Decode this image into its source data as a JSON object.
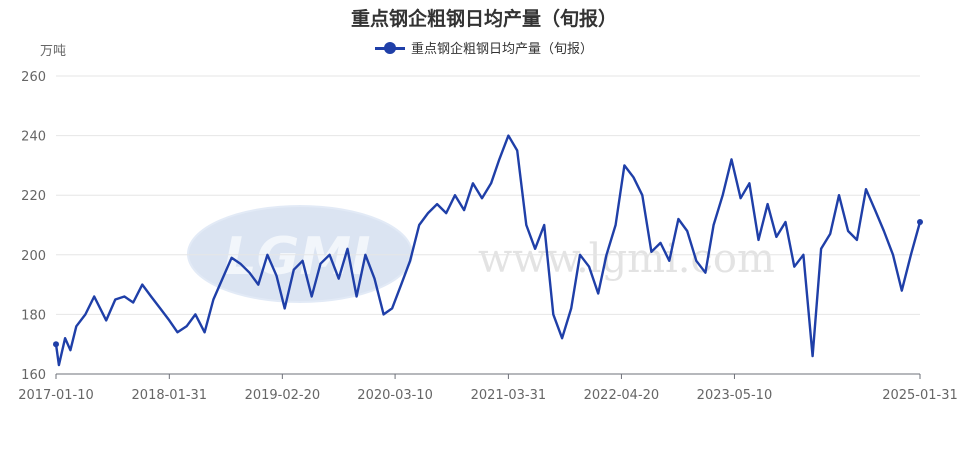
{
  "chart_data": {
    "type": "line",
    "title": "重点钢企粗钢日均产量（旬报）",
    "unit_label": "万吨",
    "ylim": [
      160,
      260
    ],
    "y_ticks": [
      160,
      180,
      200,
      220,
      240,
      260
    ],
    "x_ticks": [
      "2017-01-10",
      "2018-01-31",
      "2019-02-20",
      "2020-03-10",
      "2021-03-31",
      "2022-04-20",
      "2023-05-10",
      "2025-01-31"
    ],
    "x_range": [
      "2017-01-10",
      "2025-01-31"
    ],
    "grid": "horizontal",
    "legend_position": "top-center",
    "watermark": {
      "logo_text": "LGMI",
      "site_text": "www.lgmi.com"
    },
    "colors": {
      "series": "#1f3fa8",
      "grid": "#e6e6e6",
      "axis": "#6e7079"
    },
    "series": [
      {
        "name": "重点钢企粗钢日均产量（旬报）",
        "x": [
          "2017-01-10",
          "2017-01-20",
          "2017-02-10",
          "2017-02-28",
          "2017-03-20",
          "2017-04-20",
          "2017-05-20",
          "2017-06-30",
          "2017-07-31",
          "2017-08-31",
          "2017-09-30",
          "2017-10-31",
          "2017-11-30",
          "2017-12-31",
          "2018-01-31",
          "2018-02-28",
          "2018-03-31",
          "2018-04-30",
          "2018-05-31",
          "2018-06-30",
          "2018-07-31",
          "2018-08-31",
          "2018-09-30",
          "2018-10-31",
          "2018-11-30",
          "2018-12-31",
          "2019-01-31",
          "2019-02-28",
          "2019-03-31",
          "2019-04-30",
          "2019-05-31",
          "2019-06-30",
          "2019-07-31",
          "2019-08-31",
          "2019-09-30",
          "2019-10-31",
          "2019-11-30",
          "2019-12-31",
          "2020-01-31",
          "2020-02-29",
          "2020-03-31",
          "2020-04-30",
          "2020-05-31",
          "2020-06-30",
          "2020-07-31",
          "2020-08-31",
          "2020-09-30",
          "2020-10-31",
          "2020-11-30",
          "2020-12-31",
          "2021-01-31",
          "2021-02-28",
          "2021-03-31",
          "2021-04-30",
          "2021-05-31",
          "2021-06-30",
          "2021-07-31",
          "2021-08-31",
          "2021-09-30",
          "2021-10-31",
          "2021-11-30",
          "2021-12-31",
          "2022-01-31",
          "2022-02-28",
          "2022-03-31",
          "2022-04-30",
          "2022-05-31",
          "2022-06-30",
          "2022-07-31",
          "2022-08-31",
          "2022-09-30",
          "2022-10-31",
          "2022-11-30",
          "2022-12-31",
          "2023-01-31",
          "2023-02-28",
          "2023-03-31",
          "2023-04-30",
          "2023-05-31",
          "2023-06-30",
          "2023-07-31",
          "2023-08-31",
          "2023-09-30",
          "2023-10-31",
          "2023-11-30",
          "2023-12-31",
          "2024-01-31",
          "2024-02-29",
          "2024-03-31",
          "2024-04-30",
          "2024-05-31",
          "2024-06-30",
          "2024-07-31",
          "2024-08-31",
          "2024-09-30",
          "2024-10-31",
          "2024-11-30",
          "2024-12-31",
          "2025-01-31"
        ],
        "values": [
          170,
          163,
          172,
          168,
          176,
          180,
          186,
          178,
          185,
          186,
          184,
          190,
          186,
          182,
          178,
          174,
          176,
          180,
          174,
          185,
          192,
          199,
          197,
          194,
          190,
          200,
          193,
          182,
          195,
          198,
          186,
          197,
          200,
          192,
          202,
          186,
          200,
          192,
          180,
          182,
          190,
          198,
          210,
          214,
          217,
          214,
          220,
          215,
          224,
          219,
          224,
          232,
          240,
          235,
          210,
          202,
          210,
          180,
          172,
          182,
          200,
          196,
          187,
          200,
          210,
          230,
          226,
          220,
          201,
          204,
          198,
          212,
          208,
          198,
          194,
          210,
          220,
          232,
          219,
          224,
          205,
          217,
          206,
          211,
          196,
          200,
          166,
          202,
          207,
          220,
          208,
          205,
          222,
          215,
          208,
          200,
          188,
          200,
          211
        ]
      }
    ]
  }
}
